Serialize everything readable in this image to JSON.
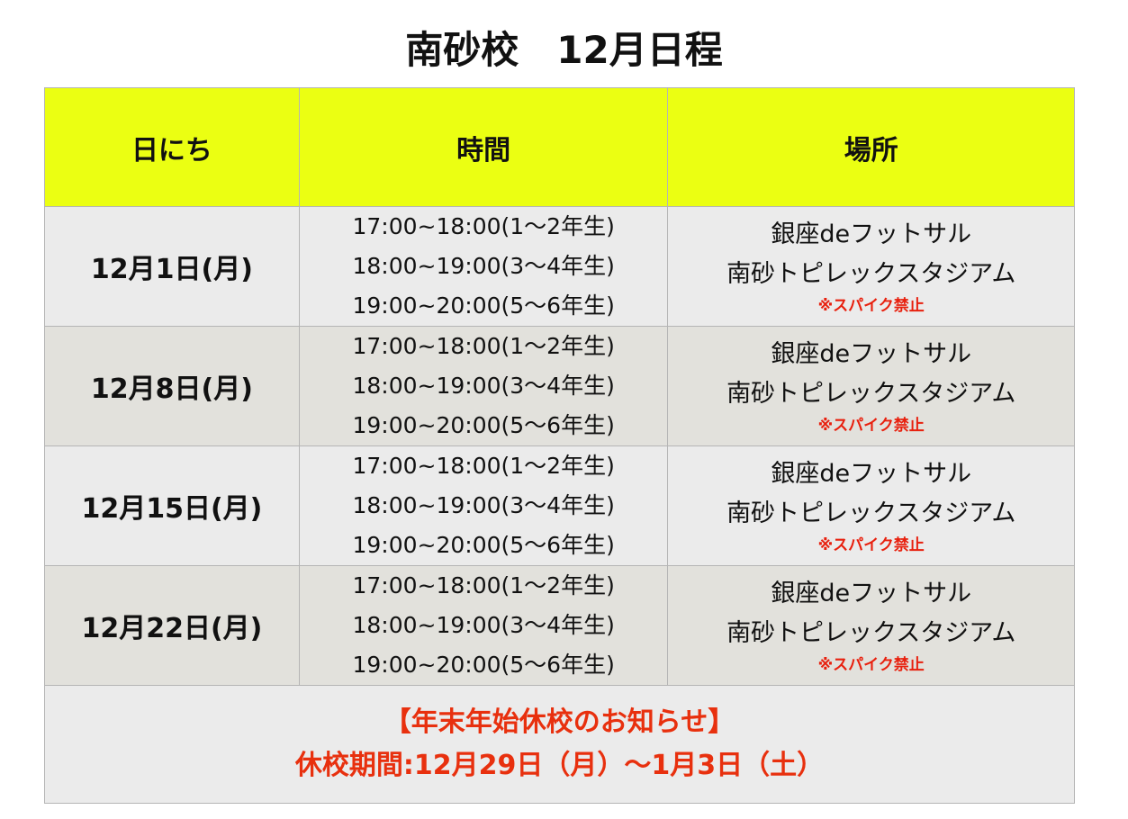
{
  "title": "南砂校　12月日程",
  "headers": [
    "日にち",
    "時間",
    "場所"
  ],
  "rows": [
    {
      "date": "12月1日(月)",
      "times": [
        "17:00~18:00(1〜2年生)",
        "18:00~19:00(3〜4年生)",
        "19:00~20:00(5〜6年生)"
      ],
      "places": [
        "銀座deフットサル",
        "南砂トピレックスタジアム"
      ],
      "note": "※スパイク禁止"
    },
    {
      "date": "12月8日(月)",
      "times": [
        "17:00~18:00(1〜2年生)",
        "18:00~19:00(3〜4年生)",
        "19:00~20:00(5〜6年生)"
      ],
      "places": [
        "銀座deフットサル",
        "南砂トピレックスタジアム"
      ],
      "note": "※スパイク禁止"
    },
    {
      "date": "12月15日(月)",
      "times": [
        "17:00~18:00(1〜2年生)",
        "18:00~19:00(3〜4年生)",
        "19:00~20:00(5〜6年生)"
      ],
      "places": [
        "銀座deフットサル",
        "南砂トピレックスタジアム"
      ],
      "note": "※スパイク禁止"
    },
    {
      "date": "12月22日(月)",
      "times": [
        "17:00~18:00(1〜2年生)",
        "18:00~19:00(3〜4年生)",
        "19:00~20:00(5〜6年生)"
      ],
      "places": [
        "銀座deフットサル",
        "南砂トピレックスタジアム"
      ],
      "note": "※スパイク禁止"
    }
  ],
  "notice": {
    "heading": "【年末年始休校のお知らせ】",
    "period": "休校期間:12月29日（月）〜1月3日（土）"
  },
  "colors": {
    "header": "#ebff12",
    "notice": "#e8200e"
  }
}
